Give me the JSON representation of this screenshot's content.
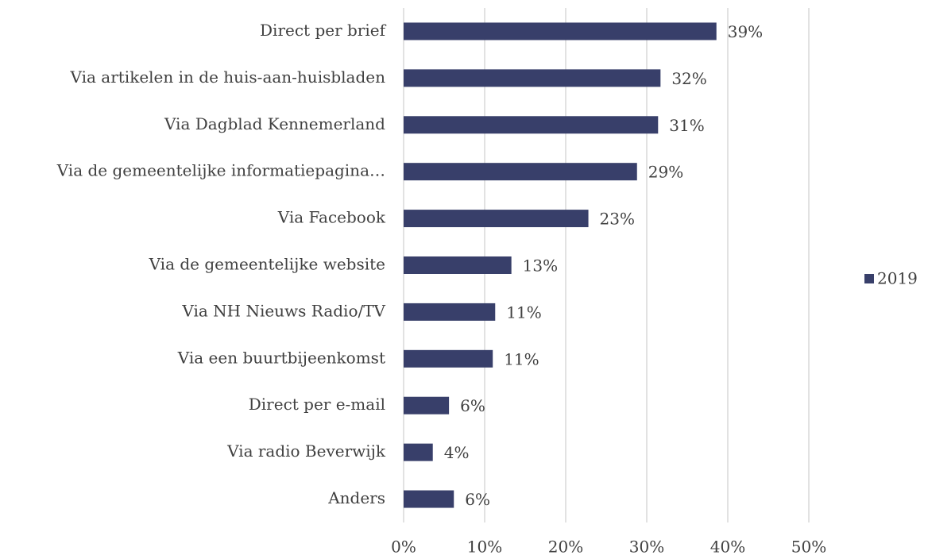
{
  "chart_data": {
    "type": "bar",
    "orientation": "horizontal",
    "categories": [
      "Direct per brief",
      "Via artikelen in de huis-aan-huisbladen",
      "Via Dagblad Kennemerland",
      "Via de gemeentelijke informatiepagina…",
      "Via Facebook",
      "Via de gemeentelijke website",
      "Via NH Nieuws Radio/TV",
      "Via een buurtbijeenkomst",
      "Direct per e-mail",
      "Via radio Beverwijk",
      "Anders"
    ],
    "series": [
      {
        "name": "2019",
        "color": "#383f6a",
        "values": [
          38.6,
          31.7,
          31.4,
          28.8,
          22.8,
          13.3,
          11.3,
          11.0,
          5.6,
          3.6,
          6.2
        ],
        "value_labels": [
          "39%",
          "32%",
          "31%",
          "29%",
          "23%",
          "13%",
          "11%",
          "11%",
          "6%",
          "4%",
          "6%"
        ]
      }
    ],
    "xlim": [
      0,
      50
    ],
    "xticks": [
      {
        "value": 0,
        "label": "0%"
      },
      {
        "value": 10,
        "label": "10%"
      },
      {
        "value": 20,
        "label": "20%"
      },
      {
        "value": 30,
        "label": "30%"
      },
      {
        "value": 40,
        "label": "40%"
      },
      {
        "value": 50,
        "label": "50%"
      }
    ],
    "grid": true,
    "legend": "right"
  }
}
